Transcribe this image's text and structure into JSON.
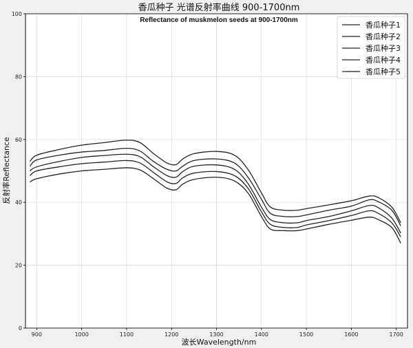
{
  "chart_data": {
    "type": "line",
    "title": "香瓜种子 光谱反射率曲线 900-1700nm",
    "subtitle": "Reflectance of muskmelon seeds at 900-1700nm",
    "xlabel": "波长Wavelength/nm",
    "ylabel": "反射率Reflectance",
    "xlim": [
      875,
      1725
    ],
    "ylim": [
      0,
      100
    ],
    "xticks": [
      900,
      1000,
      1100,
      1200,
      1300,
      1400,
      1500,
      1600,
      1700
    ],
    "yticks": [
      0,
      20,
      40,
      60,
      80,
      100
    ],
    "grid": true,
    "legend_position": "top-right",
    "line_color": "#222222",
    "x": [
      885,
      900,
      950,
      1000,
      1050,
      1100,
      1130,
      1160,
      1190,
      1210,
      1225,
      1250,
      1300,
      1340,
      1370,
      1400,
      1420,
      1450,
      1480,
      1500,
      1550,
      1600,
      1640,
      1660,
      1690,
      1710
    ],
    "series": [
      {
        "name": "香瓜种子1",
        "values": [
          53.0,
          55.0,
          56.8,
          58.2,
          59.0,
          59.8,
          59.0,
          55.5,
          52.5,
          52.0,
          53.8,
          55.5,
          56.2,
          55.0,
          50.5,
          43.0,
          38.5,
          37.5,
          37.5,
          38.0,
          39.2,
          40.5,
          42.0,
          41.5,
          38.5,
          33.5
        ]
      },
      {
        "name": "香瓜种子2",
        "values": [
          51.5,
          53.5,
          55.0,
          56.0,
          56.5,
          57.2,
          56.3,
          53.0,
          50.5,
          50.0,
          51.5,
          53.3,
          53.8,
          52.5,
          48.0,
          41.0,
          36.5,
          35.5,
          35.5,
          36.0,
          37.5,
          38.8,
          40.8,
          40.2,
          37.5,
          32.5
        ]
      },
      {
        "name": "香瓜种子3",
        "values": [
          50.0,
          51.3,
          53.0,
          54.3,
          54.9,
          55.3,
          54.5,
          51.3,
          48.5,
          48.0,
          49.8,
          51.5,
          51.9,
          50.5,
          46.0,
          38.5,
          34.5,
          33.5,
          33.5,
          34.2,
          35.5,
          37.3,
          39.0,
          38.3,
          35.0,
          30.2
        ]
      },
      {
        "name": "香瓜种子4",
        "values": [
          48.5,
          50.0,
          51.3,
          52.3,
          52.8,
          53.3,
          52.5,
          49.5,
          46.5,
          46.0,
          47.8,
          49.3,
          49.8,
          48.5,
          44.5,
          37.0,
          33.0,
          32.0,
          32.0,
          32.8,
          34.2,
          35.8,
          37.3,
          36.5,
          33.5,
          29.0
        ]
      },
      {
        "name": "香瓜种子5",
        "values": [
          46.5,
          47.5,
          49.0,
          50.0,
          50.5,
          51.0,
          50.3,
          47.5,
          44.5,
          44.0,
          45.8,
          47.3,
          48.0,
          46.8,
          43.0,
          35.5,
          31.5,
          31.0,
          31.0,
          31.5,
          33.0,
          34.3,
          35.3,
          34.5,
          32.0,
          27.0
        ]
      }
    ]
  }
}
